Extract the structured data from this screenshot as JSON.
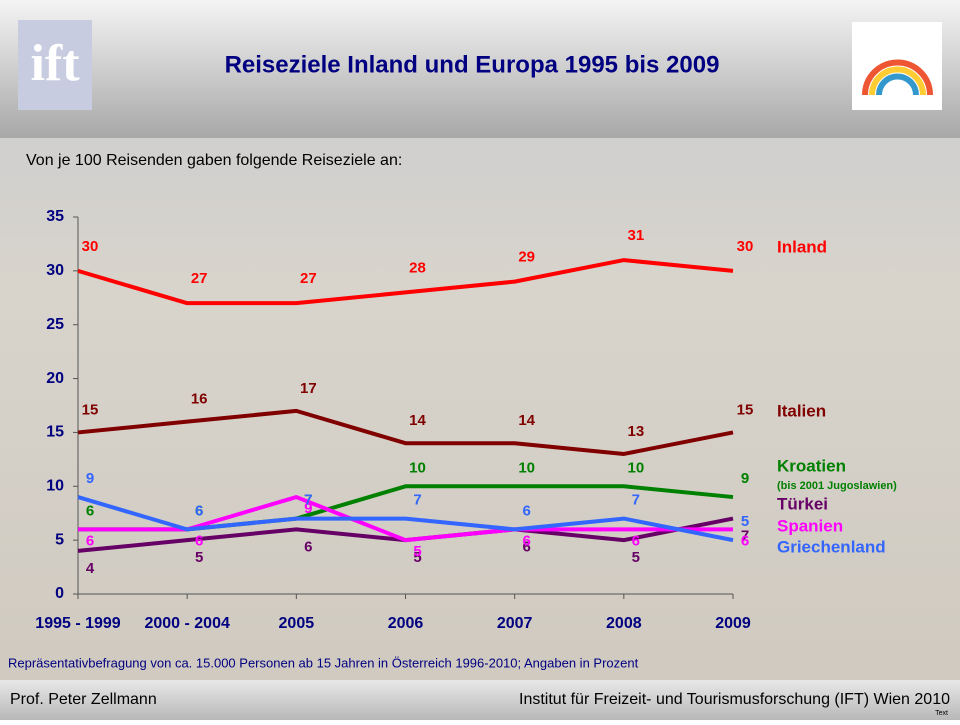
{
  "header": {
    "logo": "ift"
  },
  "chart_data": {
    "type": "line",
    "title": "Reiseziele Inland und Europa 1995 bis 2009",
    "subtitle": "Von je 100 Reisenden gaben folgende Reiseziele an:",
    "note": "Repräsentativbefragung von ca. 15.000 Personen ab 15 Jahren in Österreich 1996-2010; Angaben in Prozent",
    "categories": [
      "1995 - 1999",
      "2000 - 2004",
      "2005",
      "2006",
      "2007",
      "2008",
      "2009"
    ],
    "series": [
      {
        "name": "Inland",
        "color": "#ff0000",
        "values": [
          30,
          27,
          27,
          28,
          29,
          31,
          30
        ]
      },
      {
        "name": "Italien",
        "color": "#800000",
        "values": [
          15,
          16,
          17,
          14,
          14,
          13,
          15
        ]
      },
      {
        "name": "Kroatien",
        "name_note": "(bis 2001 Jugoslawien)",
        "color": "#008000",
        "values": [
          6,
          6,
          7,
          10,
          10,
          10,
          9
        ]
      },
      {
        "name": "Türkei",
        "color": "#660066",
        "values": [
          4,
          5,
          6,
          5,
          6,
          5,
          7
        ]
      },
      {
        "name": "Spanien",
        "color": "#ff00ff",
        "values": [
          6,
          6,
          9,
          5,
          6,
          6,
          6
        ]
      },
      {
        "name": "Griechenland",
        "color": "#3366ff",
        "values": [
          9,
          6,
          7,
          7,
          6,
          7,
          5
        ]
      }
    ],
    "ylim": [
      0,
      35
    ],
    "yticks": [
      0,
      5,
      10,
      15,
      20,
      25,
      30,
      35
    ],
    "grid": false
  },
  "footer": {
    "left": "Prof. Peter Zellmann",
    "right": "Institut für Freizeit- und Tourismusforschung (IFT) Wien  2010",
    "tag": "Text"
  }
}
